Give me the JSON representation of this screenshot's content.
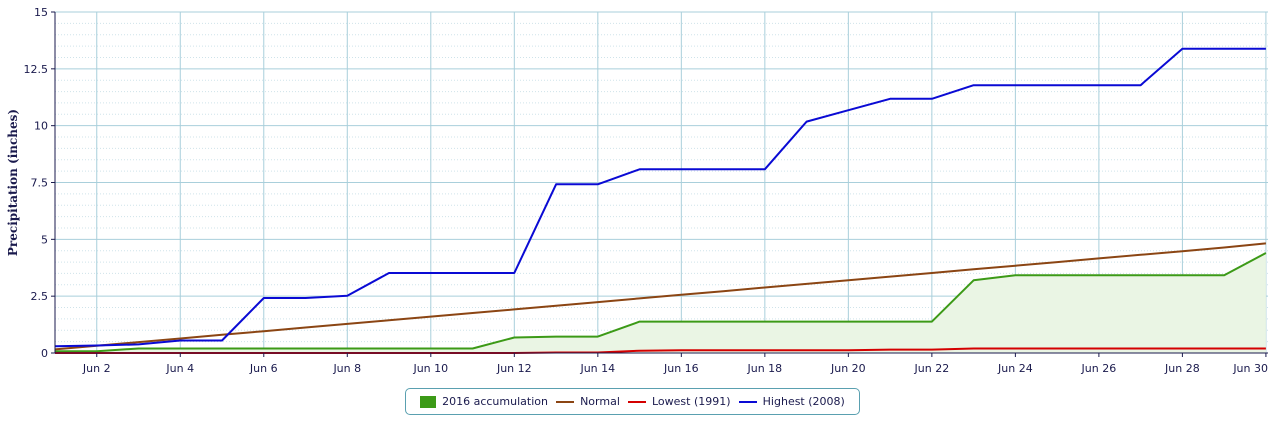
{
  "chart_data": {
    "type": "line",
    "ylabel": "Precipitation (inches)",
    "ylim": [
      0,
      15
    ],
    "yticks": [
      "0",
      "2.5",
      "5",
      "7.5",
      "10",
      "12.5",
      "15"
    ],
    "ytick_values": [
      0,
      2.5,
      5,
      7.5,
      10,
      12.5,
      15
    ],
    "xlim": [
      1,
      30
    ],
    "xticks": [
      "Jun 2",
      "Jun 4",
      "Jun 6",
      "Jun 8",
      "Jun 10",
      "Jun 12",
      "Jun 14",
      "Jun 16",
      "Jun 18",
      "Jun 20",
      "Jun 22",
      "Jun 24",
      "Jun 26",
      "Jun 28",
      "Jun 30"
    ],
    "xtick_values": [
      2,
      4,
      6,
      8,
      10,
      12,
      14,
      16,
      18,
      20,
      22,
      24,
      26,
      28,
      30
    ],
    "grid": true,
    "legend_position": "bottom-center",
    "x": [
      1,
      2,
      3,
      4,
      5,
      6,
      7,
      8,
      9,
      10,
      11,
      12,
      13,
      14,
      15,
      16,
      17,
      18,
      19,
      20,
      21,
      22,
      23,
      24,
      25,
      26,
      27,
      28,
      29,
      30
    ],
    "series": [
      {
        "name": "2016 accumulation",
        "style": "area",
        "color": "#3c9a17",
        "fill": "#eaf5e4",
        "values": [
          0.08,
          0.08,
          0.2,
          0.2,
          0.2,
          0.2,
          0.2,
          0.2,
          0.2,
          0.2,
          0.2,
          0.68,
          0.72,
          0.72,
          1.38,
          1.38,
          1.38,
          1.38,
          1.38,
          1.38,
          1.38,
          1.38,
          3.2,
          3.42,
          3.42,
          3.42,
          3.42,
          3.42,
          3.42,
          4.4
        ]
      },
      {
        "name": "Normal",
        "style": "line",
        "color": "#8b4513",
        "values": [
          0.16,
          0.32,
          0.48,
          0.64,
          0.8,
          0.96,
          1.12,
          1.28,
          1.44,
          1.6,
          1.76,
          1.92,
          2.08,
          2.24,
          2.4,
          2.56,
          2.72,
          2.88,
          3.04,
          3.2,
          3.36,
          3.52,
          3.68,
          3.84,
          4.0,
          4.16,
          4.32,
          4.48,
          4.64,
          4.82
        ]
      },
      {
        "name": "Lowest (1991)",
        "style": "line",
        "color": "#d40000",
        "values": [
          0,
          0,
          0,
          0,
          0,
          0,
          0,
          0,
          0,
          0,
          0,
          0,
          0.02,
          0.02,
          0.1,
          0.12,
          0.12,
          0.12,
          0.12,
          0.12,
          0.15,
          0.15,
          0.2,
          0.2,
          0.2,
          0.2,
          0.2,
          0.2,
          0.2,
          0.2
        ]
      },
      {
        "name": "Highest (2008)",
        "style": "line",
        "color": "#0a0ad4",
        "values": [
          0.3,
          0.33,
          0.38,
          0.55,
          0.55,
          2.42,
          2.42,
          2.52,
          3.52,
          3.52,
          3.52,
          3.52,
          7.42,
          7.42,
          8.08,
          8.08,
          8.08,
          8.08,
          10.18,
          10.68,
          11.18,
          11.18,
          11.78,
          11.78,
          11.78,
          11.78,
          11.78,
          13.38,
          13.38,
          13.38
        ]
      }
    ]
  }
}
